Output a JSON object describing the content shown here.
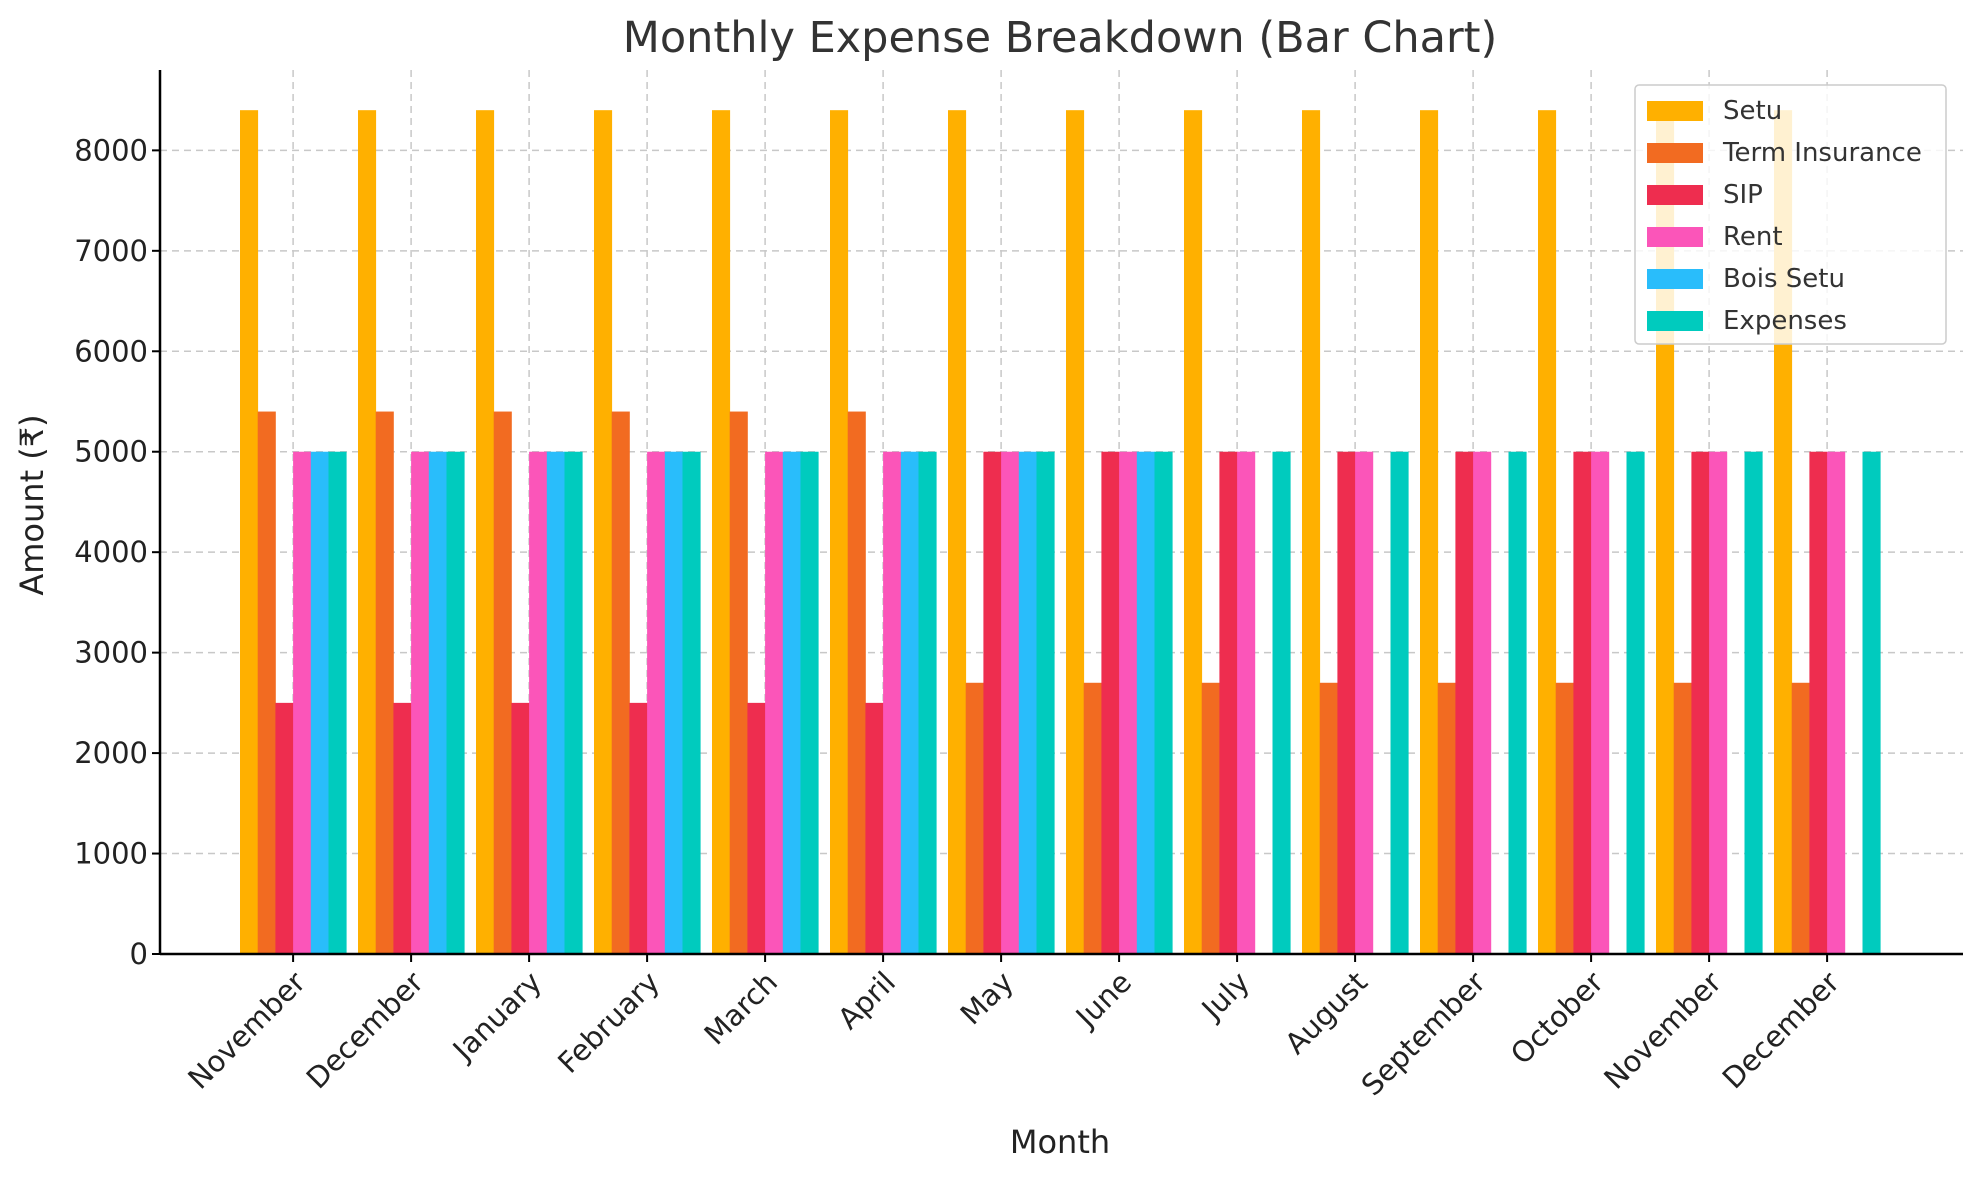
{
  "chart_data": {
    "type": "bar",
    "title": "Monthly Expense Breakdown (Bar Chart)",
    "xlabel": "Month",
    "ylabel": "Amount (₹)",
    "ylim": [
      0,
      8800
    ],
    "yticks": [
      0,
      1000,
      2000,
      3000,
      4000,
      5000,
      6000,
      7000,
      8000
    ],
    "grid": true,
    "legend_position": "top-right",
    "categories": [
      "November",
      "December",
      "January",
      "February",
      "March",
      "April",
      "May",
      "June",
      "July",
      "August",
      "September",
      "October",
      "November",
      "December"
    ],
    "series": [
      {
        "name": "Setu",
        "color": "#FFB000",
        "values": [
          8400,
          8400,
          8400,
          8400,
          8400,
          8400,
          8400,
          8400,
          8400,
          8400,
          8400,
          8400,
          8400,
          8400
        ]
      },
      {
        "name": "Term Insurance",
        "color": "#F26B21",
        "values": [
          5400,
          5400,
          5400,
          5400,
          5400,
          5400,
          2700,
          2700,
          2700,
          2700,
          2700,
          2700,
          2700,
          2700
        ]
      },
      {
        "name": "SIP",
        "color": "#EE2D4F",
        "values": [
          2500,
          2500,
          2500,
          2500,
          2500,
          2500,
          5000,
          5000,
          5000,
          5000,
          5000,
          5000,
          5000,
          5000
        ]
      },
      {
        "name": "Rent",
        "color": "#FB55B9",
        "values": [
          5000,
          5000,
          5000,
          5000,
          5000,
          5000,
          5000,
          5000,
          5000,
          5000,
          5000,
          5000,
          5000,
          5000
        ]
      },
      {
        "name": "Bois Setu",
        "color": "#29BDFB",
        "values": [
          5000,
          5000,
          5000,
          5000,
          5000,
          5000,
          5000,
          5000,
          0,
          0,
          0,
          0,
          0,
          0
        ]
      },
      {
        "name": "Expenses",
        "color": "#00CBBE",
        "values": [
          5000,
          5000,
          5000,
          5000,
          5000,
          5000,
          5000,
          5000,
          5000,
          5000,
          5000,
          5000,
          5000,
          5000
        ]
      }
    ]
  }
}
